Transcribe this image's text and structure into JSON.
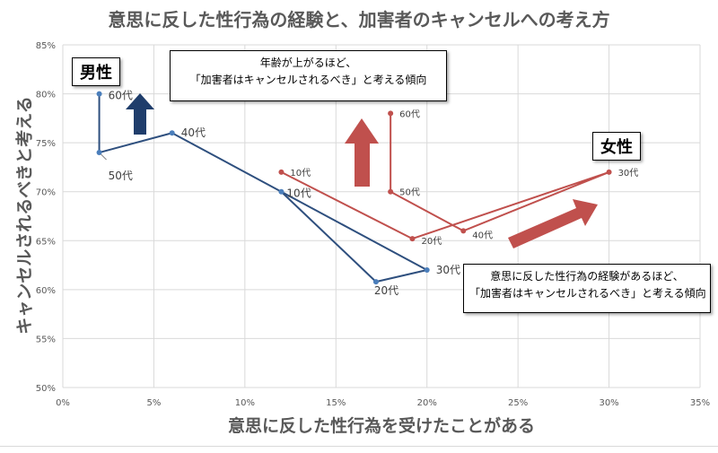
{
  "chart_data": {
    "type": "scatter",
    "title": "意思に反した性行為の経験と、加害者のキャンセルへの考え方",
    "xlabel": "意思に反した性行為を受けたことがある",
    "ylabel": "キャンセルされるべきと考える",
    "xlim": [
      0,
      35
    ],
    "ylim": [
      50,
      85
    ],
    "x_ticks": [
      "0%",
      "5%",
      "10%",
      "15%",
      "20%",
      "25%",
      "30%",
      "35%"
    ],
    "y_ticks": [
      "50%",
      "55%",
      "60%",
      "65%",
      "70%",
      "75%",
      "80%",
      "85%"
    ],
    "grid": true,
    "series": [
      {
        "name": "男性",
        "color": "#2e4f7e",
        "marker_color": "#4a7ebb",
        "points": [
          {
            "label": "10代",
            "x": 12,
            "y": 70
          },
          {
            "label": "20代",
            "x": 17.2,
            "y": 60.8
          },
          {
            "label": "30代",
            "x": 20,
            "y": 62
          },
          {
            "label": "40代",
            "x": 6,
            "y": 76
          },
          {
            "label": "50代",
            "x": 2,
            "y": 74
          },
          {
            "label": "60代",
            "x": 2,
            "y": 80
          }
        ]
      },
      {
        "name": "女性",
        "color": "#c0504d",
        "marker_color": "#c0504d",
        "points": [
          {
            "label": "10代",
            "x": 12,
            "y": 72
          },
          {
            "label": "20代",
            "x": 19.2,
            "y": 65.2
          },
          {
            "label": "30代",
            "x": 30,
            "y": 72
          },
          {
            "label": "40代",
            "x": 22,
            "y": 66
          },
          {
            "label": "50代",
            "x": 18,
            "y": 70
          },
          {
            "label": "60代",
            "x": 18,
            "y": 78
          }
        ]
      }
    ]
  },
  "annotations": {
    "male_box": "男性",
    "female_box": "女性",
    "callout_top_line1": "年齢が上がるほど、",
    "callout_top_line2": "「加害者はキャンセルされるべき」と考える傾向",
    "callout_bottom_line1": "意思に反した性行為の経験があるほど、",
    "callout_bottom_line2": "「加害者はキャンセルされるべき」と考える傾向"
  }
}
